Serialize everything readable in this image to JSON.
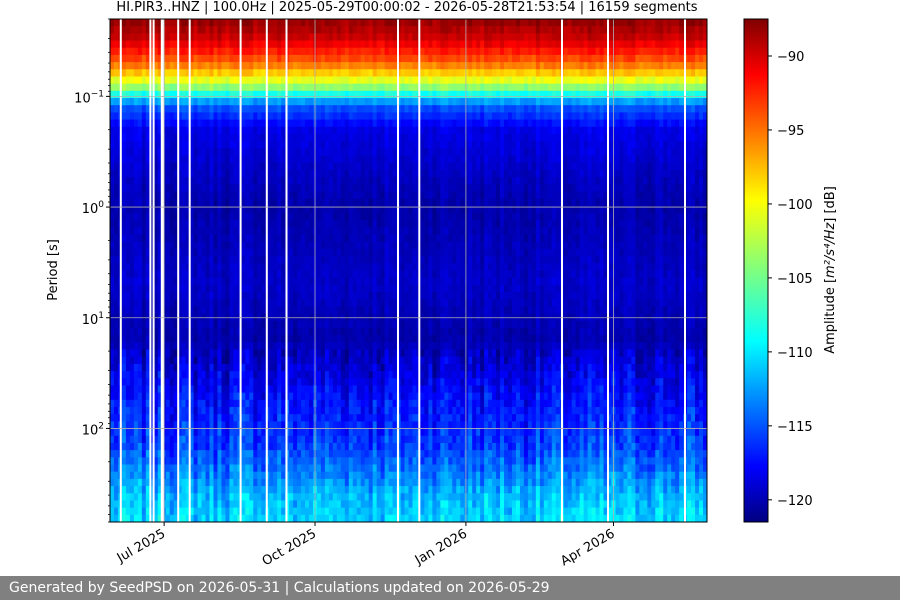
{
  "chart_data": {
    "type": "heatmap",
    "title": "HI.PIR3..HNZ | 100.0Hz | 2025-05-29T00:00:02 - 2026-05-28T21:53:54 | 16159 segments",
    "xlabel": "",
    "ylabel": "Period [s]",
    "y_scale": "log",
    "y_inverted": true,
    "ylim": [
      0.02,
      700
    ],
    "xlim": [
      "2025-05-29",
      "2026-05-28"
    ],
    "x_ticks": [
      {
        "date": "2025-07-01",
        "label": "Jul 2025"
      },
      {
        "date": "2025-10-01",
        "label": "Oct 2025"
      },
      {
        "date": "2026-01-01",
        "label": "Jan 2026"
      },
      {
        "date": "2026-04-01",
        "label": "Apr 2026"
      }
    ],
    "y_ticks": [
      {
        "value": 0.1,
        "base": "10",
        "exp": "−1"
      },
      {
        "value": 1,
        "base": "10",
        "exp": "0"
      },
      {
        "value": 10,
        "base": "10",
        "exp": "1"
      },
      {
        "value": 100,
        "base": "10",
        "exp": "2"
      }
    ],
    "grid": true,
    "colormap": "jet",
    "colorbar": {
      "label_main": "Amplitude [",
      "label_math": "m²/s⁴/Hz",
      "label_end": "] [dB]",
      "range": [
        -121.5,
        -87.5
      ],
      "ticks": [
        -90,
        -95,
        -100,
        -105,
        -110,
        -115,
        -120
      ],
      "tick_labels": [
        "−90",
        "−95",
        "−100",
        "−105",
        "−110",
        "−115",
        "−120"
      ]
    },
    "amplitude_profile": [
      {
        "period": 0.02,
        "db": -88
      },
      {
        "period": 0.03,
        "db": -90
      },
      {
        "period": 0.05,
        "db": -95
      },
      {
        "period": 0.08,
        "db": -103
      },
      {
        "period": 0.12,
        "db": -114
      },
      {
        "period": 0.2,
        "db": -118
      },
      {
        "period": 1,
        "db": -120
      },
      {
        "period": 5,
        "db": -119
      },
      {
        "period": 15,
        "db": -120
      },
      {
        "period": 50,
        "db": -117
      },
      {
        "period": 150,
        "db": -115
      },
      {
        "period": 400,
        "db": -111
      },
      {
        "period": 700,
        "db": -110
      }
    ],
    "data_gap_dates": [
      "2025-06-04",
      "2025-06-22",
      "2025-06-24",
      "2025-06-29",
      "2025-06-30",
      "2025-07-09",
      "2025-07-16",
      "2025-08-16",
      "2025-09-01",
      "2025-09-13",
      "2025-11-20",
      "2025-12-03",
      "2026-02-28",
      "2026-03-28",
      "2026-05-14"
    ]
  },
  "footer": {
    "text": "Generated by SeedPSD on 2026-05-31 | Calculations updated on 2026-05-29"
  }
}
